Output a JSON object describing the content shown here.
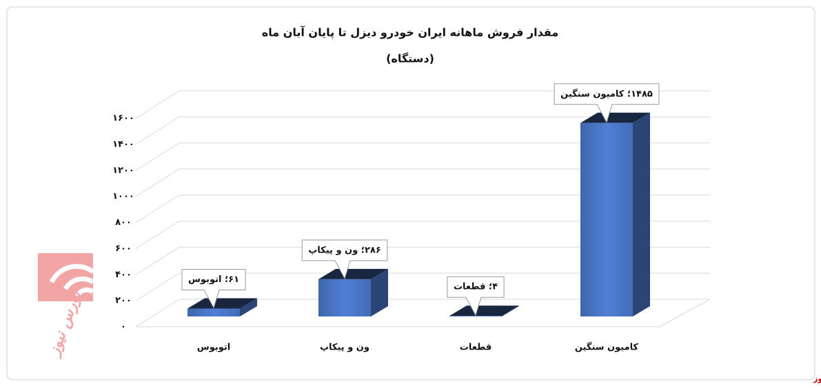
{
  "chart_data": {
    "type": "bar3d",
    "title": "مقدار فروش ماهانه ایران خودرو دیزل تا پایان آبان ماه",
    "subtitle": "(دستگاه)",
    "categories": [
      "اتوبوس",
      "ون و پیکاپ",
      "قطعات",
      "کامیون سنگین"
    ],
    "values": [
      61,
      286,
      4,
      1485
    ],
    "value_labels": [
      "۶۱؛ اتوبوس",
      "۲۸۶؛ ون و پیکاپ",
      "۴؛ قطعات",
      "۱۴۸۵؛ کامیون سنگین"
    ],
    "color": "#4f7fd6",
    "ylim": [
      0,
      1600
    ],
    "yticks": [
      {
        "value": 0,
        "label": "۰"
      },
      {
        "value": 200,
        "label": "۲۰۰"
      },
      {
        "value": 400,
        "label": "۴۰۰"
      },
      {
        "value": 600,
        "label": "۶۰۰"
      },
      {
        "value": 800,
        "label": "۸۰۰"
      },
      {
        "value": 1000,
        "label": "۱۰۰۰"
      },
      {
        "value": 1200,
        "label": "۱۲۰۰"
      },
      {
        "value": 1400,
        "label": "۱۴۰۰"
      },
      {
        "value": 1600,
        "label": "۱۶۰۰"
      }
    ],
    "grid": true
  },
  "logo_text": "بورس نیوز",
  "source": "بورس نیوز"
}
